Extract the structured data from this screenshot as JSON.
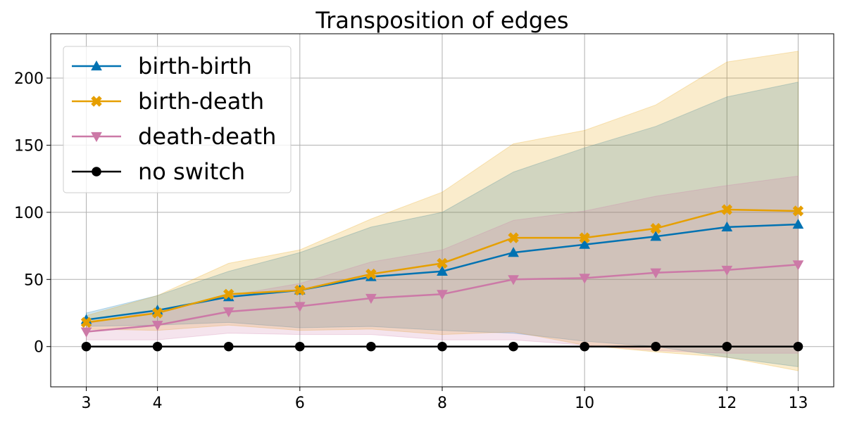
{
  "chart_data": {
    "type": "line",
    "title": "Transposition of edges",
    "xlabel": "",
    "ylabel": "",
    "x": [
      3,
      4,
      5,
      6,
      7,
      8,
      9,
      10,
      11,
      12,
      13
    ],
    "xlim": [
      2.5,
      13.5
    ],
    "ylim": [
      -30,
      233
    ],
    "x_ticks": [
      3,
      4,
      6,
      8,
      10,
      12,
      13
    ],
    "y_ticks": [
      0,
      50,
      100,
      150,
      200
    ],
    "grid": true,
    "legend_placement": "upper-left",
    "series": [
      {
        "name": "birth-birth",
        "color": "#0072b2",
        "marker": "triangle-up",
        "values": [
          20,
          27,
          37,
          42,
          52,
          56,
          70,
          76,
          82,
          89,
          91
        ],
        "band_upper": [
          25,
          38,
          56,
          70,
          89,
          100,
          130,
          148,
          164,
          186,
          197
        ],
        "band_lower": [
          15,
          16,
          18,
          14,
          15,
          12,
          10,
          4,
          0,
          -8,
          -15
        ]
      },
      {
        "name": "birth-death",
        "color": "#e69f00",
        "marker": "x-filled",
        "values": [
          18,
          25,
          39,
          42,
          54,
          62,
          81,
          81,
          88,
          102,
          101
        ],
        "band_upper": [
          23,
          38,
          62,
          72,
          95,
          115,
          151,
          161,
          180,
          212,
          220
        ],
        "band_lower": [
          13,
          12,
          16,
          12,
          13,
          9,
          11,
          1,
          -4,
          -8,
          -18
        ]
      },
      {
        "name": "death-death",
        "color": "#cc79a7",
        "marker": "triangle-down",
        "values": [
          11,
          16,
          26,
          30,
          36,
          39,
          50,
          51,
          55,
          57,
          61
        ],
        "band_upper": [
          17,
          27,
          38,
          47,
          63,
          72,
          94,
          101,
          112,
          120,
          127
        ],
        "band_lower": [
          5,
          5,
          10,
          9,
          9,
          5,
          5,
          1,
          -3,
          -5,
          -5
        ]
      },
      {
        "name": "no switch",
        "color": "#000000",
        "marker": "circle",
        "values": [
          0,
          0,
          0,
          0,
          0,
          0,
          0,
          0,
          0,
          0,
          0
        ]
      }
    ]
  }
}
